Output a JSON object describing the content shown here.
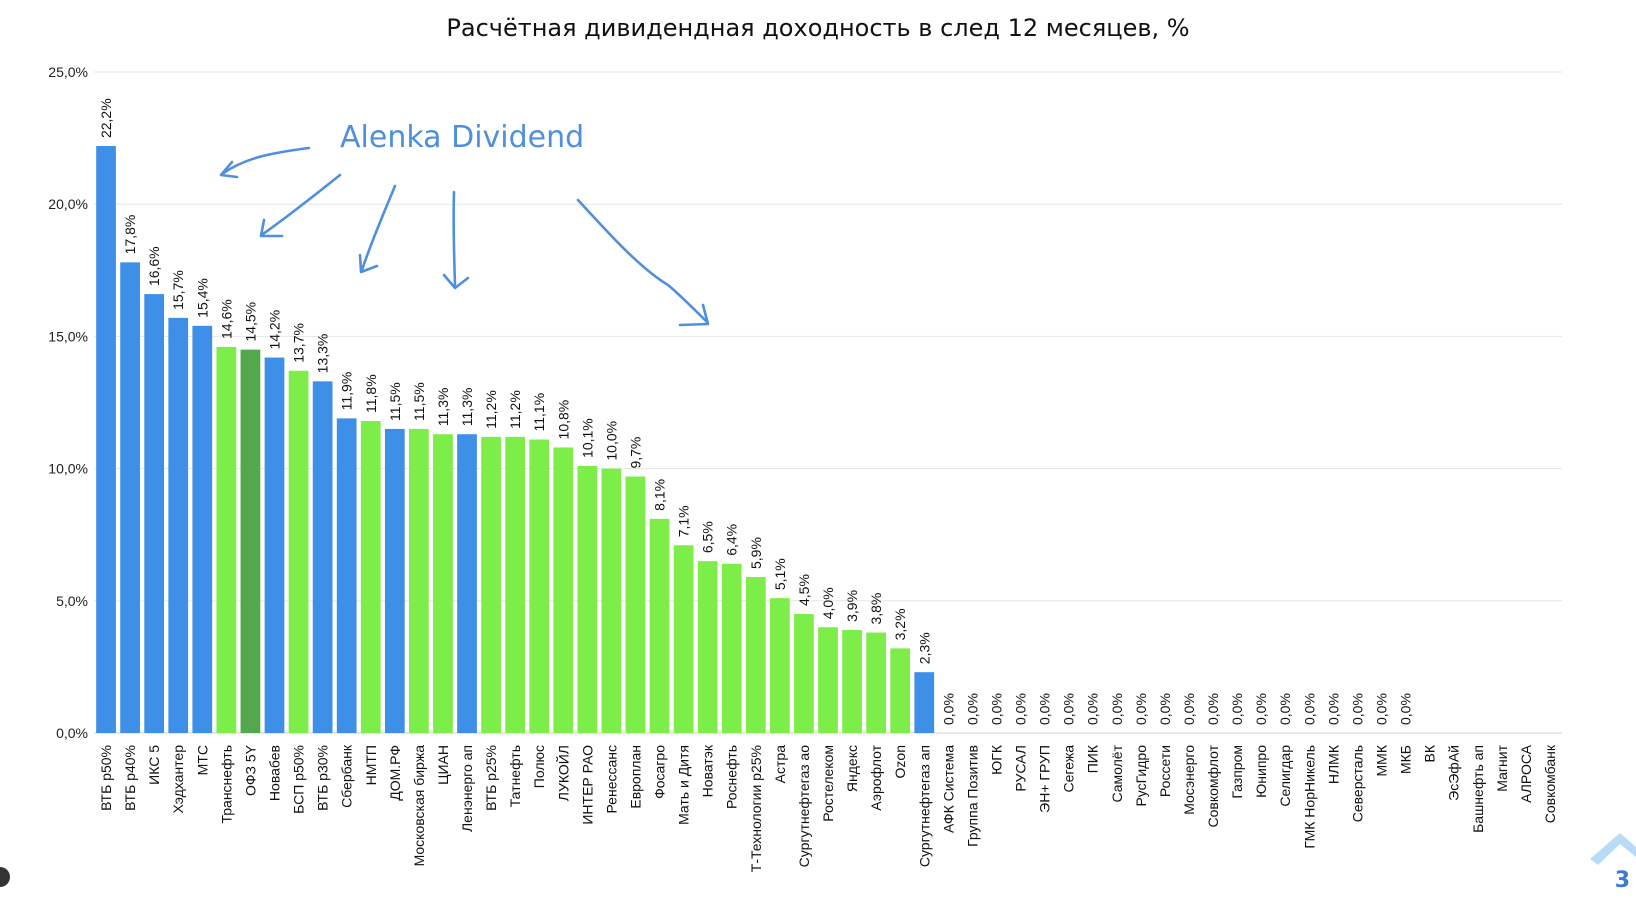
{
  "chart_data": {
    "type": "bar",
    "title": "Расчётная дивидендная доходность в след 12 месяцев, %",
    "xlabel": "",
    "ylabel": "",
    "ylim": [
      0,
      25
    ],
    "yticks": [
      "0,0%",
      "5,0%",
      "10,0%",
      "15,0%",
      "20,0%",
      "25,0%"
    ],
    "ytick_values": [
      0,
      5,
      10,
      15,
      20,
      25
    ],
    "grid": true,
    "colors": {
      "blue": "#3d8fe8",
      "light_green": "#7ded49",
      "dark_green": "#52a84a"
    },
    "categories": [
      "ВТБ p50%",
      "ВТБ p40%",
      "ИКС 5",
      "Хэдхантер",
      "МТС",
      "Транснефть",
      "ОФЗ 5Y",
      "Новабев",
      "БСП p50%",
      "ВТБ p30%",
      "Сбербанк",
      "НМТП",
      "ДОМ.РФ",
      "Московская биржа",
      "ЦИАН",
      "Ленэнерго ап",
      "ВТБ p25%",
      "Татнефть",
      "Полюс",
      "ЛУКОЙЛ",
      "ИНТЕР РАО",
      "Ренессанс",
      "Европлан",
      "Фосагро",
      "Мать и Дитя",
      "Новатэк",
      "Роснефть",
      "Т-Технологии p25%",
      "Астра",
      "Сургутнефтегаз ао",
      "Ростелеком",
      "Яндекс",
      "Аэрофлот",
      "Ozon",
      "Сургутнефтегаз ап",
      "АФК Система",
      "Группа Позитив",
      "ЮГК",
      "РУСАЛ",
      "ЭН+ ГРУП",
      "Сегежа",
      "ПИК",
      "Самолёт",
      "РусГидро",
      "Россети",
      "Мосэнерго",
      "Совкомфлот",
      "Газпром",
      "Юнипро",
      "Селигдар",
      "ГМК НорНикель",
      "НЛМК",
      "Северсталь",
      "ММК",
      "МКБ",
      "ВК",
      "ЭсЭфАй",
      "Башнефть ап",
      "Магнит",
      "АЛРОСА",
      "Совкомбанк"
    ],
    "values": [
      22.2,
      17.8,
      16.6,
      15.7,
      15.4,
      14.6,
      14.5,
      14.2,
      13.7,
      13.3,
      11.9,
      11.8,
      11.5,
      11.5,
      11.3,
      11.3,
      11.2,
      11.2,
      11.1,
      10.8,
      10.1,
      10.0,
      9.7,
      8.1,
      7.1,
      6.5,
      6.4,
      5.9,
      5.1,
      4.5,
      4.0,
      3.9,
      3.8,
      3.2,
      2.3,
      0,
      0,
      0,
      0,
      0,
      0,
      0,
      0,
      0,
      0,
      0,
      0,
      0,
      0,
      0,
      0,
      0,
      0,
      0,
      0,
      null,
      null,
      null,
      null,
      null,
      null
    ],
    "labels": [
      "22,2%",
      "17,8%",
      "16,6%",
      "15,7%",
      "15,4%",
      "14,6%",
      "14,5%",
      "14,2%",
      "13,7%",
      "13,3%",
      "11,9%",
      "11,8%",
      "11,5%",
      "11,5%",
      "11,3%",
      "11,3%",
      "11,2%",
      "11,2%",
      "11,1%",
      "10,8%",
      "10,1%",
      "10,0%",
      "9,7%",
      "8,1%",
      "7,1%",
      "6,5%",
      "6,4%",
      "5,9%",
      "5,1%",
      "4,5%",
      "4,0%",
      "3,9%",
      "3,8%",
      "3,2%",
      "2,3%",
      "0,0%",
      "0,0%",
      "0,0%",
      "0,0%",
      "0,0%",
      "0,0%",
      "0,0%",
      "0,0%",
      "0,0%",
      "0,0%",
      "0,0%",
      "0,0%",
      "0,0%",
      "0,0%",
      "0,0%",
      "0,0%",
      "0,0%",
      "0,0%",
      "0,0%",
      "0,0%",
      "",
      "",
      "",
      "",
      "",
      ""
    ],
    "bar_colors": [
      "blue",
      "blue",
      "blue",
      "blue",
      "blue",
      "light_green",
      "dark_green",
      "blue",
      "light_green",
      "blue",
      "blue",
      "light_green",
      "blue",
      "light_green",
      "light_green",
      "blue",
      "light_green",
      "light_green",
      "light_green",
      "light_green",
      "light_green",
      "light_green",
      "light_green",
      "light_green",
      "light_green",
      "light_green",
      "light_green",
      "light_green",
      "light_green",
      "light_green",
      "light_green",
      "light_green",
      "light_green",
      "light_green",
      "blue",
      "blue",
      "blue",
      "blue",
      "blue",
      "blue",
      "blue",
      "blue",
      "blue",
      "blue",
      "blue",
      "blue",
      "blue",
      "blue",
      "blue",
      "blue",
      "blue",
      "blue",
      "blue",
      "blue",
      "blue",
      "blue",
      "blue",
      "blue",
      "blue",
      "blue",
      "blue"
    ]
  },
  "annotation": {
    "text": "Alenka Dividend",
    "color": "#4f8fdc"
  },
  "page_number": "3"
}
